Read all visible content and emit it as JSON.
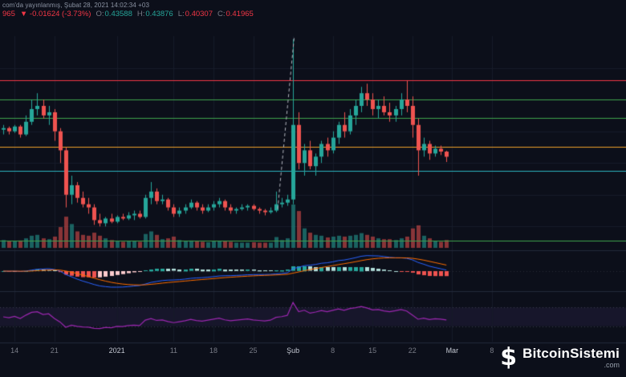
{
  "header": {
    "publication_line": "com'da yayınlanmış, Şubat 28, 2021 14:02:34 +03"
  },
  "legend": {
    "price_fragment": "965",
    "change": "▼ -0.01624 (-3.73%)",
    "ohlc": [
      {
        "label": "O:",
        "value": "0.43588"
      },
      {
        "label": "H:",
        "value": "0.43876"
      },
      {
        "label": "L:",
        "value": "0.40307"
      },
      {
        "label": "C:",
        "value": "0.41965"
      }
    ]
  },
  "watermark": {
    "icon_glyph": "$",
    "name": "BitcoinSistemi",
    "tld": ".com"
  },
  "chart_data": {
    "type": "candlestick",
    "title": "",
    "price_range": [
      0.13,
      0.8
    ],
    "grid_prices": [
      0.2,
      0.3,
      0.4,
      0.5,
      0.6,
      0.7
    ],
    "time_labels": [
      {
        "i": 2,
        "t": "14",
        "major": false
      },
      {
        "i": 9,
        "t": "21",
        "major": false
      },
      {
        "i": 20,
        "t": "2021",
        "major": true
      },
      {
        "i": 30,
        "t": "11",
        "major": false
      },
      {
        "i": 37,
        "t": "18",
        "major": false
      },
      {
        "i": 44,
        "t": "25",
        "major": false
      },
      {
        "i": 51,
        "t": "Şub",
        "major": true
      },
      {
        "i": 58,
        "t": "8",
        "major": false
      },
      {
        "i": 65,
        "t": "15",
        "major": false
      },
      {
        "i": 72,
        "t": "22",
        "major": false
      },
      {
        "i": 79,
        "t": "Mar",
        "major": true
      },
      {
        "i": 86,
        "t": "8",
        "major": false
      }
    ],
    "price_lines": [
      {
        "price": 0.661,
        "color": "#f23645"
      },
      {
        "price": 0.601,
        "color": "#3fa34d"
      },
      {
        "price": 0.543,
        "color": "#3fa34d"
      },
      {
        "price": 0.452,
        "color": "#f0a029"
      },
      {
        "price": 0.376,
        "color": "#2bb3c0"
      },
      {
        "price": 0.156,
        "color": "#3fa34d"
      }
    ],
    "trend_line": {
      "from": {
        "i": 48.3,
        "price": 0.255
      },
      "to": {
        "i": 51.2,
        "price": 0.795
      },
      "color": "#b2b5be",
      "dash": true
    },
    "indicators": {
      "macd": {
        "fast": 12,
        "slow": 26,
        "signal": 9,
        "macd_color": "#2962ff",
        "signal_color": "#ff6d00",
        "hist_grow_above": "#26a69a",
        "hist_fall_above": "#b2dfdb",
        "hist_fall_below": "#ef5350",
        "hist_grow_below": "#fccbcd"
      },
      "rsi": {
        "period": 14,
        "line_color": "#9c27b0",
        "band_fill": "rgba(126,87,194,0.10)",
        "bands": [
          30,
          70
        ]
      }
    },
    "colors": {
      "background": "#0c0f1a",
      "grid": "#161b29",
      "pane_divider": "#232a3b",
      "up": "#26a69a",
      "down": "#ef5350",
      "vol_up": "rgba(38,166,154,0.55)",
      "vol_down": "rgba(239,83,80,0.55)"
    },
    "candles": [
      [
        0.505,
        0.52,
        0.49,
        0.51,
        0.18
      ],
      [
        0.51,
        0.515,
        0.49,
        0.5,
        0.15
      ],
      [
        0.5,
        0.52,
        0.495,
        0.515,
        0.16
      ],
      [
        0.515,
        0.52,
        0.48,
        0.49,
        0.17
      ],
      [
        0.49,
        0.55,
        0.485,
        0.53,
        0.22
      ],
      [
        0.53,
        0.6,
        0.52,
        0.57,
        0.28
      ],
      [
        0.57,
        0.62,
        0.55,
        0.58,
        0.3
      ],
      [
        0.58,
        0.6,
        0.54,
        0.55,
        0.22
      ],
      [
        0.55,
        0.58,
        0.52,
        0.56,
        0.2
      ],
      [
        0.56,
        0.57,
        0.47,
        0.5,
        0.26
      ],
      [
        0.5,
        0.51,
        0.4,
        0.44,
        0.48
      ],
      [
        0.44,
        0.45,
        0.26,
        0.3,
        0.72
      ],
      [
        0.3,
        0.36,
        0.27,
        0.33,
        0.55
      ],
      [
        0.33,
        0.34,
        0.275,
        0.29,
        0.38
      ],
      [
        0.29,
        0.31,
        0.26,
        0.27,
        0.3
      ],
      [
        0.27,
        0.29,
        0.24,
        0.26,
        0.28
      ],
      [
        0.26,
        0.27,
        0.205,
        0.22,
        0.35
      ],
      [
        0.22,
        0.24,
        0.2,
        0.21,
        0.28
      ],
      [
        0.21,
        0.23,
        0.2,
        0.225,
        0.22
      ],
      [
        0.225,
        0.24,
        0.21,
        0.215,
        0.18
      ],
      [
        0.215,
        0.235,
        0.21,
        0.23,
        0.16
      ],
      [
        0.23,
        0.24,
        0.22,
        0.225,
        0.14
      ],
      [
        0.225,
        0.245,
        0.22,
        0.235,
        0.15
      ],
      [
        0.235,
        0.25,
        0.22,
        0.24,
        0.16
      ],
      [
        0.24,
        0.25,
        0.225,
        0.23,
        0.14
      ],
      [
        0.23,
        0.3,
        0.225,
        0.29,
        0.32
      ],
      [
        0.29,
        0.34,
        0.27,
        0.31,
        0.38
      ],
      [
        0.31,
        0.32,
        0.27,
        0.28,
        0.3
      ],
      [
        0.28,
        0.3,
        0.27,
        0.285,
        0.2
      ],
      [
        0.285,
        0.29,
        0.25,
        0.26,
        0.22
      ],
      [
        0.26,
        0.27,
        0.23,
        0.24,
        0.26
      ],
      [
        0.24,
        0.26,
        0.23,
        0.25,
        0.18
      ],
      [
        0.25,
        0.27,
        0.24,
        0.26,
        0.16
      ],
      [
        0.26,
        0.285,
        0.255,
        0.275,
        0.17
      ],
      [
        0.275,
        0.28,
        0.25,
        0.26,
        0.15
      ],
      [
        0.26,
        0.27,
        0.24,
        0.25,
        0.14
      ],
      [
        0.25,
        0.27,
        0.245,
        0.26,
        0.13
      ],
      [
        0.26,
        0.28,
        0.25,
        0.27,
        0.15
      ],
      [
        0.27,
        0.29,
        0.26,
        0.28,
        0.16
      ],
      [
        0.28,
        0.285,
        0.25,
        0.26,
        0.15
      ],
      [
        0.26,
        0.27,
        0.24,
        0.25,
        0.14
      ],
      [
        0.25,
        0.26,
        0.24,
        0.255,
        0.12
      ],
      [
        0.255,
        0.27,
        0.25,
        0.26,
        0.12
      ],
      [
        0.26,
        0.27,
        0.25,
        0.265,
        0.12
      ],
      [
        0.265,
        0.27,
        0.25,
        0.255,
        0.13
      ],
      [
        0.255,
        0.26,
        0.24,
        0.25,
        0.12
      ],
      [
        0.25,
        0.255,
        0.235,
        0.245,
        0.12
      ],
      [
        0.245,
        0.26,
        0.24,
        0.25,
        0.12
      ],
      [
        0.25,
        0.31,
        0.245,
        0.27,
        0.25
      ],
      [
        0.27,
        0.29,
        0.26,
        0.275,
        0.18
      ],
      [
        0.275,
        0.3,
        0.265,
        0.285,
        0.22
      ],
      [
        0.285,
        0.79,
        0.27,
        0.52,
        1.0
      ],
      [
        0.52,
        0.56,
        0.38,
        0.4,
        0.85
      ],
      [
        0.4,
        0.46,
        0.36,
        0.44,
        0.45
      ],
      [
        0.44,
        0.47,
        0.38,
        0.39,
        0.35
      ],
      [
        0.39,
        0.43,
        0.36,
        0.42,
        0.3
      ],
      [
        0.42,
        0.47,
        0.4,
        0.46,
        0.28
      ],
      [
        0.46,
        0.48,
        0.42,
        0.44,
        0.24
      ],
      [
        0.44,
        0.5,
        0.43,
        0.48,
        0.26
      ],
      [
        0.48,
        0.53,
        0.46,
        0.52,
        0.28
      ],
      [
        0.52,
        0.56,
        0.48,
        0.5,
        0.26
      ],
      [
        0.5,
        0.57,
        0.49,
        0.55,
        0.28
      ],
      [
        0.55,
        0.6,
        0.52,
        0.58,
        0.3
      ],
      [
        0.58,
        0.64,
        0.56,
        0.62,
        0.34
      ],
      [
        0.62,
        0.65,
        0.58,
        0.6,
        0.3
      ],
      [
        0.6,
        0.62,
        0.55,
        0.57,
        0.26
      ],
      [
        0.57,
        0.6,
        0.54,
        0.58,
        0.22
      ],
      [
        0.58,
        0.61,
        0.55,
        0.56,
        0.2
      ],
      [
        0.56,
        0.59,
        0.53,
        0.55,
        0.2
      ],
      [
        0.55,
        0.58,
        0.53,
        0.57,
        0.18
      ],
      [
        0.57,
        0.62,
        0.55,
        0.6,
        0.22
      ],
      [
        0.6,
        0.66,
        0.56,
        0.58,
        0.26
      ],
      [
        0.58,
        0.61,
        0.48,
        0.52,
        0.45
      ],
      [
        0.52,
        0.54,
        0.36,
        0.44,
        0.52
      ],
      [
        0.44,
        0.48,
        0.42,
        0.46,
        0.28
      ],
      [
        0.46,
        0.47,
        0.41,
        0.43,
        0.22
      ],
      [
        0.43,
        0.455,
        0.42,
        0.445,
        0.16
      ],
      [
        0.445,
        0.455,
        0.425,
        0.436,
        0.14
      ],
      [
        0.43588,
        0.43876,
        0.40307,
        0.41965,
        0.18
      ]
    ]
  }
}
